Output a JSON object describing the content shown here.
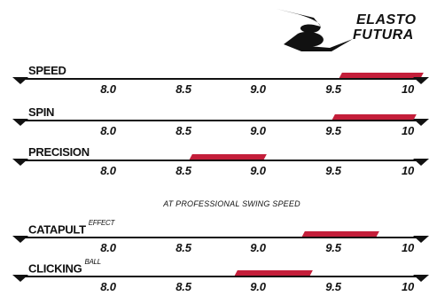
{
  "brand": {
    "line1": "ELASTO",
    "line2": "FUTURA"
  },
  "ticks": [
    "8.0",
    "8.5",
    "9.0",
    "9.5",
    "10"
  ],
  "subtitle": "AT PROFESSIONAL SWING SPEED",
  "colors": {
    "bar": "#c41e3a",
    "ink": "#111111"
  },
  "scales": [
    {
      "label": "SPEED",
      "sup": "",
      "range": [
        9.55,
        10.1
      ]
    },
    {
      "label": "SPIN",
      "sup": "",
      "range": [
        9.5,
        10.05
      ]
    },
    {
      "label": "PRECISION",
      "sup": "",
      "range": [
        8.55,
        9.05
      ]
    },
    {
      "label": "CATAPULT",
      "sup": "EFFECT",
      "range": [
        9.3,
        9.8
      ]
    },
    {
      "label": "CLICKING",
      "sup": "BALL",
      "range": [
        8.85,
        9.35
      ]
    }
  ]
}
